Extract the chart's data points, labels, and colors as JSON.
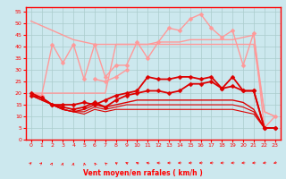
{
  "x": [
    0,
    1,
    2,
    3,
    4,
    5,
    6,
    7,
    8,
    9,
    10,
    11,
    12,
    13,
    14,
    15,
    16,
    17,
    18,
    19,
    20,
    21,
    22,
    23
  ],
  "series": [
    {
      "name": "diagonal_light1",
      "color": "#FF9999",
      "lw": 1.0,
      "marker": null,
      "alpha": 1.0,
      "y": [
        51,
        49,
        47,
        45,
        43,
        42,
        41,
        41,
        41,
        41,
        41,
        41,
        42,
        42,
        42,
        43,
        43,
        43,
        43,
        43,
        44,
        45,
        12,
        10
      ]
    },
    {
      "name": "flat_light2",
      "color": "#FF9999",
      "lw": 1.0,
      "marker": null,
      "alpha": 1.0,
      "y": [
        20,
        20,
        20,
        20,
        20,
        20,
        20,
        20,
        41,
        41,
        41,
        41,
        41,
        41,
        41,
        41,
        41,
        41,
        41,
        41,
        41,
        41,
        12,
        10
      ]
    },
    {
      "name": "jagged_light3",
      "color": "#FF9999",
      "lw": 1.0,
      "marker": "D",
      "alpha": 1.0,
      "y": [
        20,
        19,
        41,
        33,
        41,
        26,
        41,
        27,
        32,
        32,
        42,
        35,
        42,
        48,
        47,
        52,
        54,
        48,
        44,
        47,
        32,
        46,
        5,
        10
      ]
    },
    {
      "name": "lower_jagged_light4",
      "color": "#FF9999",
      "lw": 1.0,
      "marker": "D",
      "alpha": 1.0,
      "y": [
        null,
        null,
        null,
        null,
        null,
        null,
        26,
        25,
        27,
        30,
        null,
        null,
        null,
        null,
        null,
        null,
        null,
        null,
        null,
        null,
        null,
        null,
        null,
        null
      ]
    },
    {
      "name": "dark_high_markers",
      "color": "#DD0000",
      "lw": 1.3,
      "marker": "D",
      "alpha": 1.0,
      "y": [
        19,
        18,
        15,
        15,
        15,
        16,
        15,
        17,
        19,
        20,
        21,
        27,
        26,
        26,
        27,
        27,
        26,
        27,
        22,
        27,
        21,
        21,
        5,
        5
      ]
    },
    {
      "name": "dark_mid_markers",
      "color": "#DD0000",
      "lw": 1.3,
      "marker": "D",
      "alpha": 1.0,
      "y": [
        20,
        18,
        15,
        14,
        13,
        14,
        16,
        14,
        17,
        19,
        20,
        21,
        21,
        20,
        21,
        24,
        24,
        25,
        22,
        23,
        21,
        21,
        5,
        5
      ]
    },
    {
      "name": "dark_low1",
      "color": "#DD0000",
      "lw": 1.0,
      "marker": null,
      "alpha": 1.0,
      "y": [
        19,
        18,
        15,
        13,
        12,
        13,
        15,
        14,
        15,
        16,
        17,
        17,
        17,
        17,
        17,
        17,
        17,
        17,
        17,
        17,
        16,
        13,
        5,
        5
      ]
    },
    {
      "name": "dark_low2",
      "color": "#DD0000",
      "lw": 0.8,
      "marker": null,
      "alpha": 1.0,
      "y": [
        19,
        17,
        15,
        13,
        12,
        12,
        14,
        13,
        14,
        15,
        15,
        15,
        15,
        15,
        15,
        15,
        15,
        15,
        15,
        15,
        14,
        12,
        5,
        5
      ]
    },
    {
      "name": "dark_bottom",
      "color": "#DD0000",
      "lw": 0.8,
      "marker": null,
      "alpha": 1.0,
      "y": [
        19,
        17,
        15,
        13,
        12,
        11,
        13,
        12,
        13,
        13,
        13,
        13,
        13,
        13,
        13,
        13,
        13,
        13,
        13,
        13,
        12,
        11,
        5,
        5
      ]
    }
  ],
  "arrow_rotations": [
    40,
    35,
    20,
    10,
    5,
    350,
    340,
    330,
    315,
    305,
    295,
    285,
    275,
    270,
    265,
    265,
    265,
    265,
    265,
    265,
    265,
    265,
    260,
    250
  ],
  "xlim": [
    -0.5,
    23.5
  ],
  "ylim": [
    0,
    57
  ],
  "yticks": [
    0,
    5,
    10,
    15,
    20,
    25,
    30,
    35,
    40,
    45,
    50,
    55
  ],
  "xticks": [
    0,
    1,
    2,
    3,
    4,
    5,
    6,
    7,
    8,
    9,
    10,
    11,
    12,
    13,
    14,
    15,
    16,
    17,
    18,
    19,
    20,
    21,
    22,
    23
  ],
  "xlabel": "Vent moyen/en rafales ( km/h )",
  "bg_color": "#CCE8EE",
  "grid_color": "#AACCCC",
  "axis_color": "#FF0000",
  "label_color": "#FF0000",
  "marker_size": 2.5
}
